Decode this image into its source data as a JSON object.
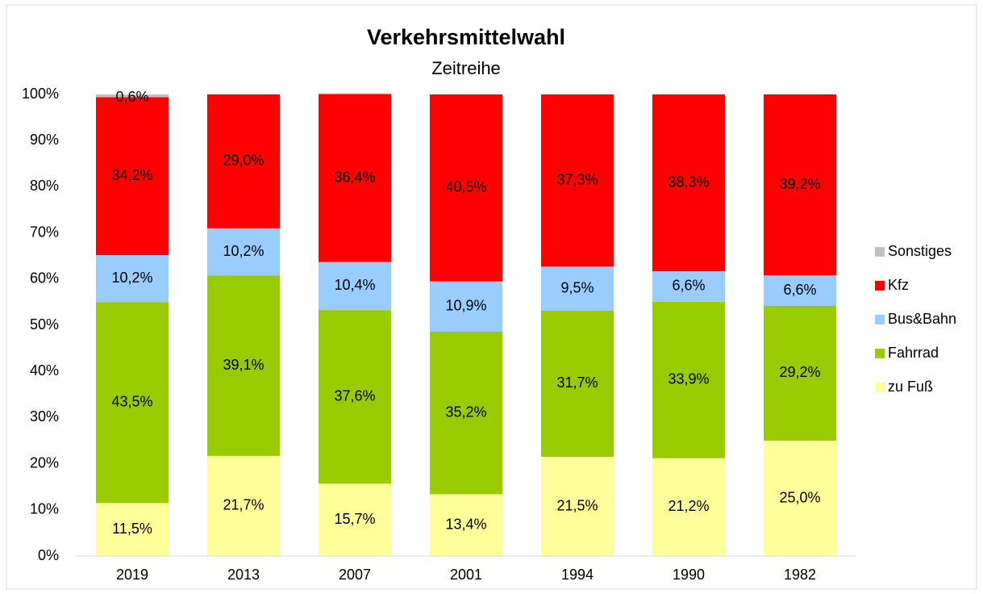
{
  "chart_data": {
    "type": "stacked_bar",
    "title": "Verkehrsmittelwahl",
    "subtitle": "Zeitreihe",
    "categories": [
      "2019",
      "2013",
      "2007",
      "2001",
      "1994",
      "1990",
      "1982"
    ],
    "series": [
      {
        "name": "zu Fuß",
        "color": "#ffff99",
        "values": [
          11.5,
          21.7,
          15.7,
          13.4,
          21.5,
          21.2,
          25.0
        ],
        "value_labels": [
          "11,5%",
          "21,7%",
          "15,7%",
          "13,4%",
          "21,5%",
          "21,2%",
          "25,0%"
        ]
      },
      {
        "name": "Fahrrad",
        "color": "#99cc00",
        "values": [
          43.5,
          39.1,
          37.6,
          35.2,
          31.7,
          33.9,
          29.2
        ],
        "value_labels": [
          "43,5%",
          "39,1%",
          "37,6%",
          "35,2%",
          "31,7%",
          "33,9%",
          "29,2%"
        ]
      },
      {
        "name": "Bus&Bahn",
        "color": "#99ccff",
        "values": [
          10.2,
          10.2,
          10.4,
          10.9,
          9.5,
          6.6,
          6.6
        ],
        "value_labels": [
          "10,2%",
          "10,2%",
          "10,4%",
          "10,9%",
          "9,5%",
          "6,6%",
          "6,6%"
        ]
      },
      {
        "name": "Kfz",
        "color": "#ff0000",
        "values": [
          34.2,
          29.0,
          36.4,
          40.5,
          37.3,
          38.3,
          39.2
        ],
        "value_labels": [
          "34,2%",
          "29,0%",
          "36,4%",
          "40,5%",
          "37,3%",
          "38,3%",
          "39,2%"
        ]
      },
      {
        "name": "Sonstiges",
        "color": "#c0c0c0",
        "values": [
          0.6,
          null,
          null,
          null,
          null,
          null,
          null
        ],
        "value_labels": [
          "0,6%",
          null,
          null,
          null,
          null,
          null,
          null
        ]
      }
    ],
    "ylim": [
      0,
      100
    ],
    "yticks": [
      {
        "value": 0,
        "label": "0%"
      },
      {
        "value": 10,
        "label": "10%"
      },
      {
        "value": 20,
        "label": "20%"
      },
      {
        "value": 30,
        "label": "30%"
      },
      {
        "value": 40,
        "label": "40%"
      },
      {
        "value": 50,
        "label": "50%"
      },
      {
        "value": 60,
        "label": "60%"
      },
      {
        "value": 70,
        "label": "70%"
      },
      {
        "value": 80,
        "label": "80%"
      },
      {
        "value": 90,
        "label": "90%"
      },
      {
        "value": 100,
        "label": "100%"
      }
    ],
    "grid": false,
    "legend": "right"
  }
}
